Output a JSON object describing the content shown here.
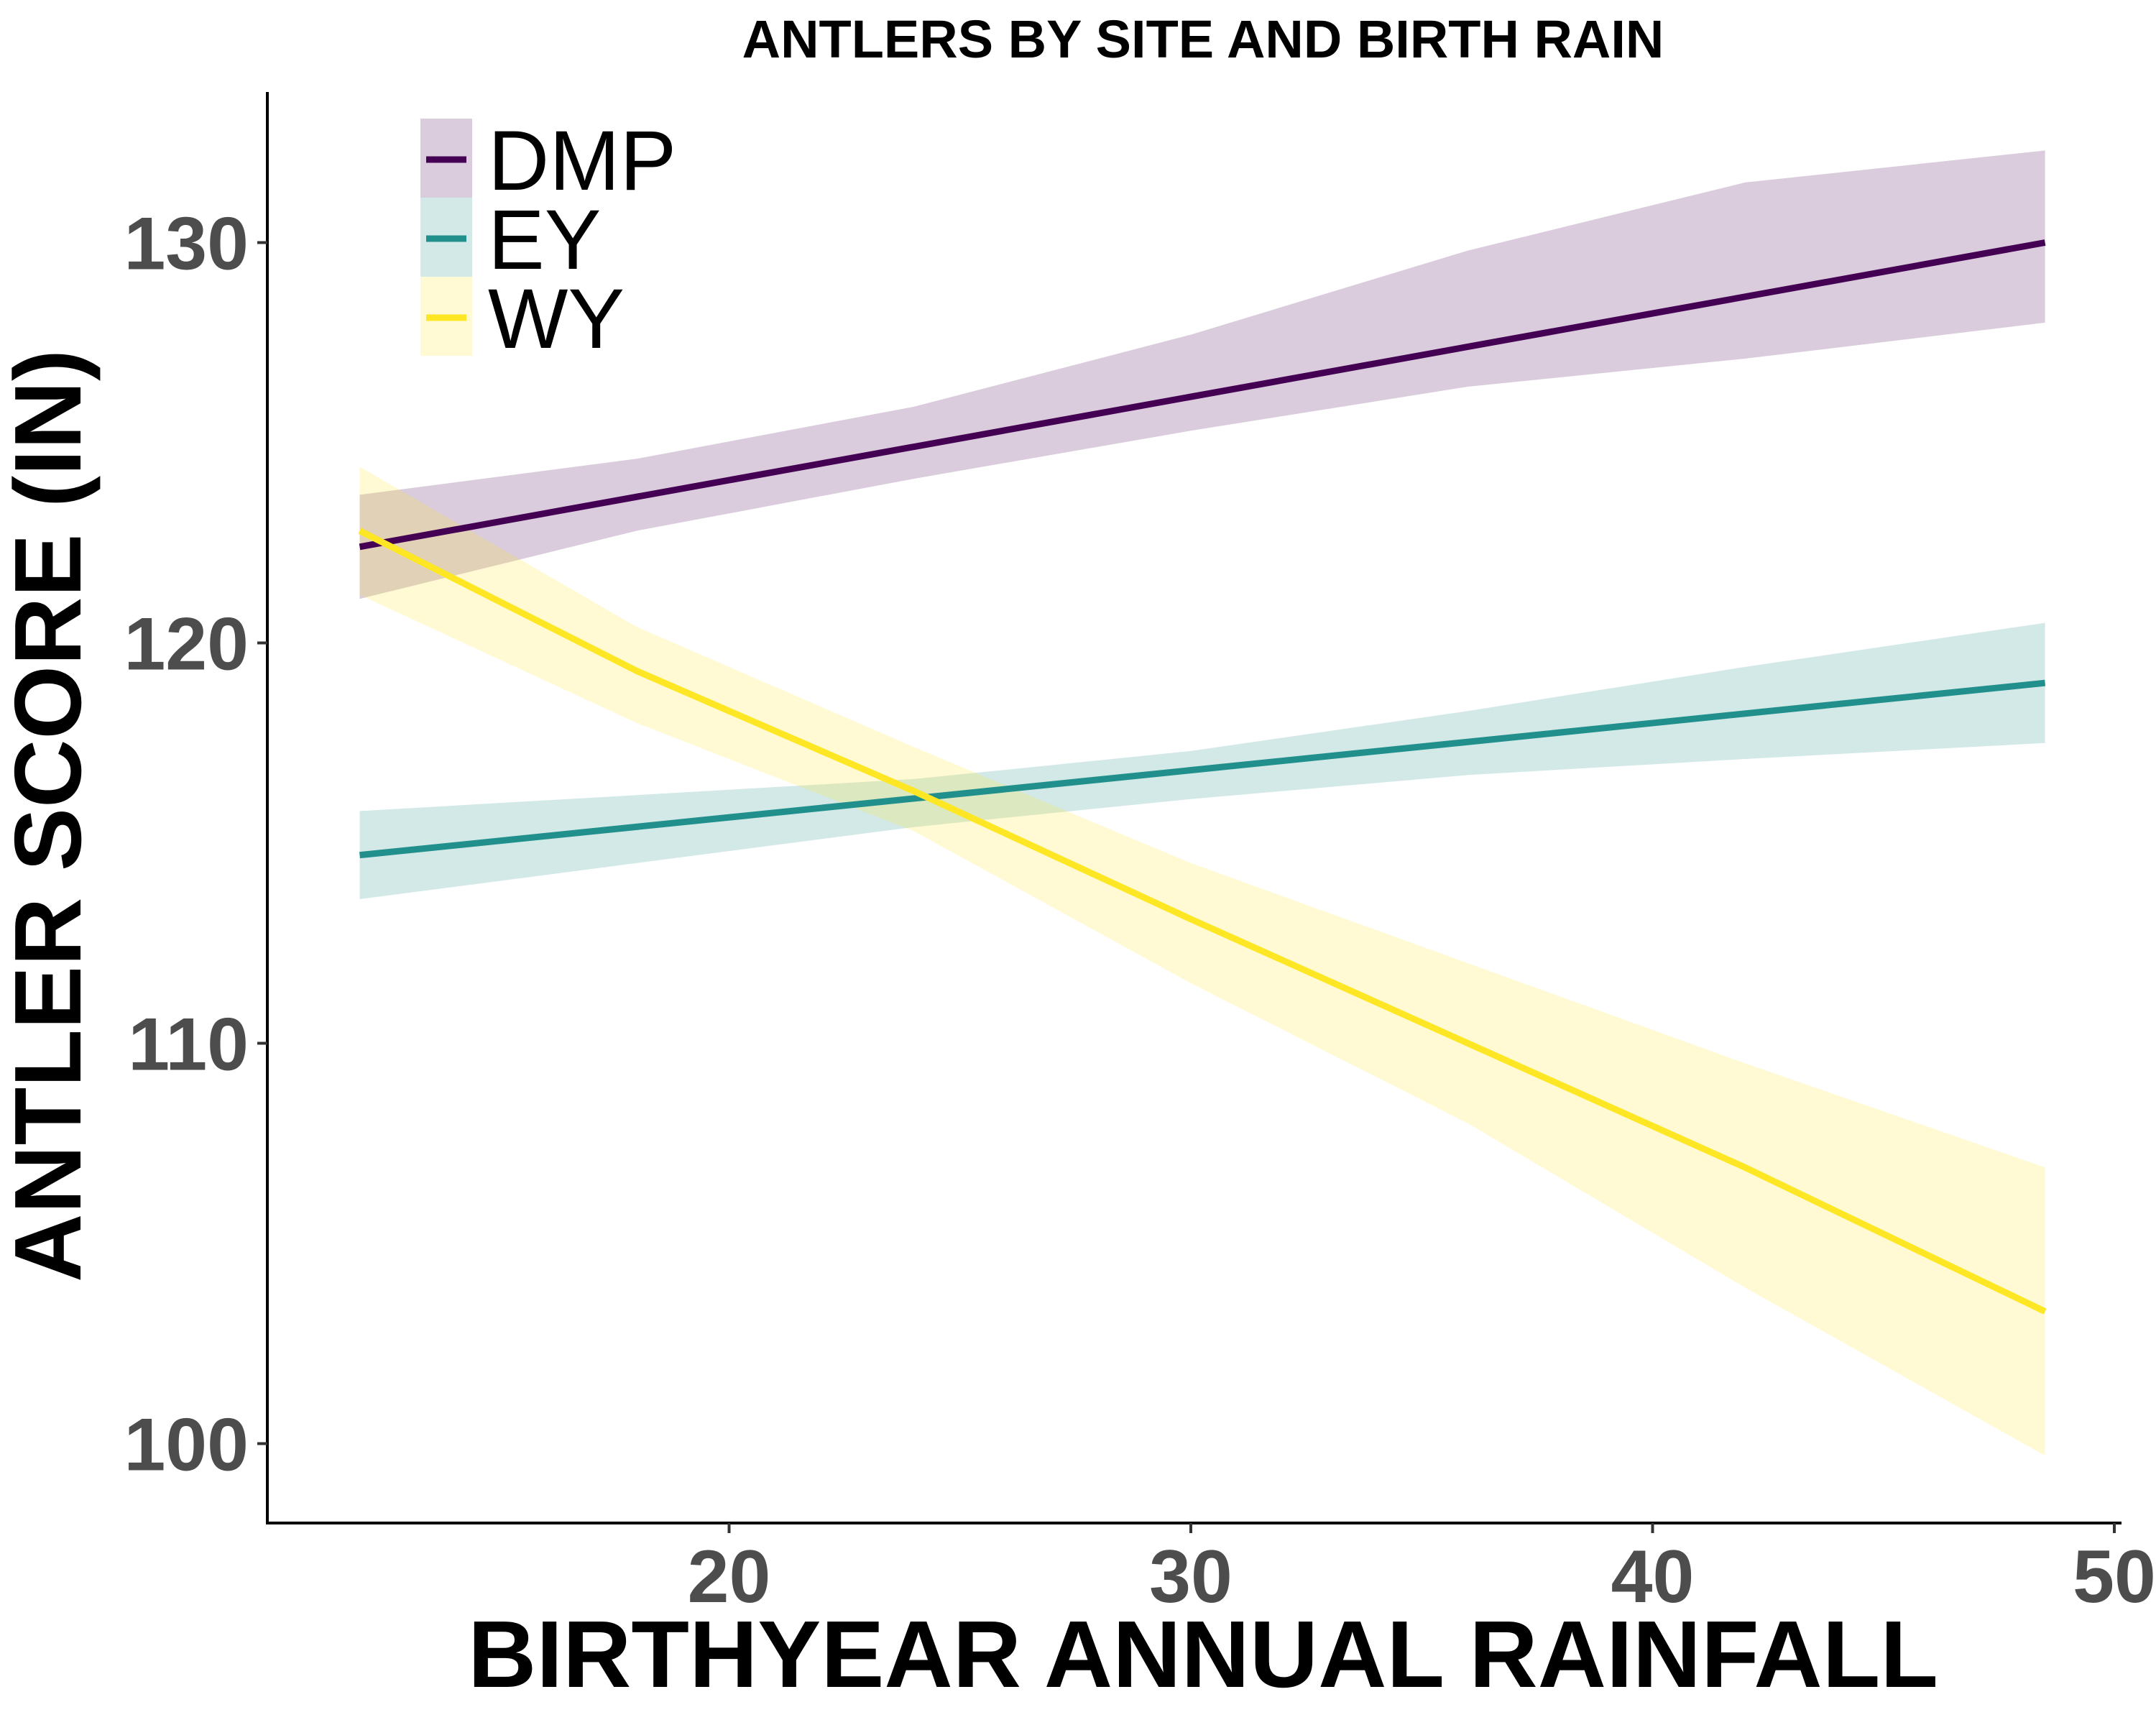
{
  "chart_data": {
    "type": "line",
    "title": "ANTLERS BY SITE AND BIRTH RAIN",
    "xlabel": "BIRTHYEAR ANNUAL RAINFALL",
    "ylabel": "ANTLER SCORE (IN)",
    "xlim": [
      11,
      51
    ],
    "ylim": [
      98,
      134
    ],
    "xticks": [
      "20",
      "30",
      "40",
      "50"
    ],
    "yticks": [
      "100",
      "110",
      "120",
      "130"
    ],
    "grid": false,
    "legend_position": "top-left",
    "series": [
      {
        "name": "DMP",
        "color": "#440154",
        "band_color": "#440154",
        "x": [
          12,
          48.5
        ],
        "y": [
          122.4,
          130.0
        ],
        "ci_x": [
          12,
          18,
          24,
          30,
          36,
          42,
          48.5
        ],
        "ci_lower": [
          121.1,
          122.8,
          124.1,
          125.3,
          126.4,
          127.1,
          128.0
        ],
        "ci_upper": [
          123.7,
          124.6,
          125.9,
          127.7,
          129.8,
          131.5,
          132.3
        ]
      },
      {
        "name": "EY",
        "color": "#21908C",
        "band_color": "#21908C",
        "x": [
          12,
          48.5
        ],
        "y": [
          114.7,
          119.0
        ],
        "ci_x": [
          12,
          18,
          24,
          30,
          36,
          42,
          48.5
        ],
        "ci_lower": [
          113.6,
          114.5,
          115.4,
          116.1,
          116.7,
          117.1,
          117.5
        ],
        "ci_upper": [
          115.8,
          116.2,
          116.6,
          117.3,
          118.3,
          119.4,
          120.5
        ]
      },
      {
        "name": "WY",
        "color": "#FDE725",
        "band_color": "#FDE725",
        "x": [
          12,
          18,
          24,
          30,
          36,
          42,
          48.5
        ],
        "y": [
          122.8,
          119.3,
          116.3,
          113.1,
          110.0,
          106.9,
          103.3
        ],
        "ci_x": [
          12,
          18,
          24,
          30,
          36,
          42,
          48.5
        ],
        "ci_lower": [
          121.2,
          118.0,
          115.3,
          111.5,
          108.0,
          103.9,
          99.7
        ],
        "ci_upper": [
          124.4,
          120.4,
          117.4,
          114.5,
          112.0,
          109.5,
          106.9
        ]
      }
    ]
  }
}
